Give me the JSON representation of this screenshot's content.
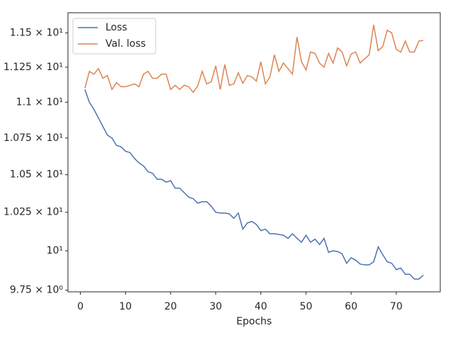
{
  "chart_data": {
    "type": "line",
    "xlabel": "Epochs",
    "x": [
      1,
      2,
      3,
      4,
      5,
      6,
      7,
      8,
      9,
      10,
      11,
      12,
      13,
      14,
      15,
      16,
      17,
      18,
      19,
      20,
      21,
      22,
      23,
      24,
      25,
      26,
      27,
      28,
      29,
      30,
      31,
      32,
      33,
      34,
      35,
      36,
      37,
      38,
      39,
      40,
      41,
      42,
      43,
      44,
      45,
      46,
      47,
      48,
      49,
      50,
      51,
      52,
      53,
      54,
      55,
      56,
      57,
      58,
      59,
      60,
      61,
      62,
      63,
      64,
      65,
      66,
      67,
      68,
      69,
      70,
      71,
      72,
      73,
      74,
      75,
      76
    ],
    "series": [
      {
        "name": "Loss",
        "color": "#4c72b0",
        "values": [
          11.09,
          11.0,
          10.95,
          10.89,
          10.83,
          10.77,
          10.75,
          10.7,
          10.69,
          10.66,
          10.65,
          10.61,
          10.58,
          10.56,
          10.52,
          10.51,
          10.47,
          10.47,
          10.45,
          10.46,
          10.41,
          10.41,
          10.38,
          10.35,
          10.34,
          10.31,
          10.32,
          10.32,
          10.29,
          10.25,
          10.245,
          10.245,
          10.24,
          10.21,
          10.245,
          10.14,
          10.18,
          10.19,
          10.17,
          10.13,
          10.14,
          10.11,
          10.11,
          10.105,
          10.1,
          10.08,
          10.11,
          10.08,
          10.055,
          10.1,
          10.055,
          10.075,
          10.04,
          10.08,
          9.99,
          10.0,
          9.995,
          9.98,
          9.92,
          9.955,
          9.94,
          9.915,
          9.91,
          9.91,
          9.93,
          10.025,
          9.975,
          9.93,
          9.92,
          9.88,
          9.89,
          9.85,
          9.85,
          9.82,
          9.82,
          9.845
        ]
      },
      {
        "name": "Val. loss",
        "color": "#dd8452",
        "values": [
          11.1,
          11.22,
          11.2,
          11.24,
          11.17,
          11.19,
          11.09,
          11.14,
          11.11,
          11.11,
          11.12,
          11.13,
          11.11,
          11.2,
          11.22,
          11.17,
          11.17,
          11.2,
          11.2,
          11.09,
          11.12,
          11.09,
          11.12,
          11.11,
          11.07,
          11.115,
          11.22,
          11.13,
          11.145,
          11.26,
          11.09,
          11.27,
          11.12,
          11.13,
          11.21,
          11.135,
          11.19,
          11.18,
          11.15,
          11.29,
          11.13,
          11.18,
          11.34,
          11.22,
          11.28,
          11.24,
          11.2,
          11.47,
          11.29,
          11.23,
          11.36,
          11.35,
          11.28,
          11.25,
          11.35,
          11.28,
          11.39,
          11.36,
          11.26,
          11.345,
          11.36,
          11.28,
          11.31,
          11.34,
          11.56,
          11.37,
          11.4,
          11.52,
          11.5,
          11.38,
          11.36,
          11.44,
          11.36,
          11.36,
          11.44,
          11.445
        ]
      }
    ],
    "xlim": [
      -2.75,
      79.75
    ],
    "xticks": [
      0,
      10,
      20,
      30,
      40,
      50,
      60,
      70
    ],
    "ylim": [
      9.74,
      11.65
    ],
    "ylog": true,
    "yticks": [
      {
        "value": 9.75,
        "label": "9.75 × 10⁰"
      },
      {
        "value": 10,
        "label": "10¹"
      },
      {
        "value": 10.25,
        "label": "1.025 × 10¹"
      },
      {
        "value": 10.5,
        "label": "1.05 × 10¹"
      },
      {
        "value": 10.75,
        "label": "1.075 × 10¹"
      },
      {
        "value": 11,
        "label": "1.1 × 10¹"
      },
      {
        "value": 11.25,
        "label": "1.125 × 10¹"
      },
      {
        "value": 11.5,
        "label": "1.15 × 10¹"
      }
    ],
    "legend": "upper left"
  }
}
